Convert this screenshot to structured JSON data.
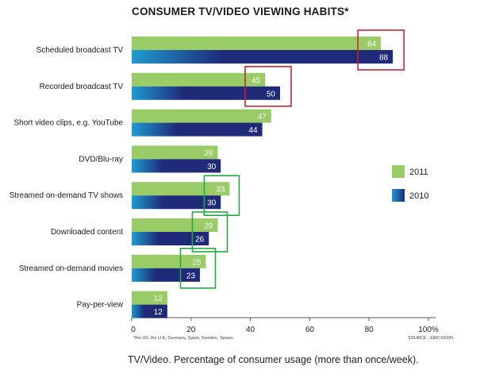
{
  "chart_data": {
    "type": "bar",
    "orientation": "horizontal",
    "title": "CONSUMER TV/VIDEO VIEWING HABITS*",
    "categories": [
      "Scheduled broadcast TV",
      "Recorded broadcast TV",
      "Short video clips, e.g. YouTube",
      "DVD/Blu-ray",
      "Streamed on-demand TV shows",
      "Downloaded content",
      "Streamed on-demand movies",
      "Pay-per-view"
    ],
    "series": [
      {
        "name": "2011",
        "values": [
          84,
          45,
          47,
          29,
          33,
          29,
          25,
          12
        ],
        "color": "#99cc66"
      },
      {
        "name": "2010",
        "values": [
          88,
          50,
          44,
          30,
          30,
          26,
          23,
          12
        ],
        "color": "#1f2a78",
        "gradient_start": "#1f9bd0"
      }
    ],
    "xlim": [
      0,
      100
    ],
    "x_ticks": [
      "0",
      "20",
      "40",
      "60",
      "80",
      "100%"
    ],
    "legend": [
      {
        "label": "2011",
        "color": "#99cc66"
      },
      {
        "label": "2010",
        "color": "#1f2a78"
      }
    ],
    "legend_position": "right",
    "highlights": [
      {
        "category": "Scheduled broadcast TV",
        "color": "#cc2233"
      },
      {
        "category": "Recorded broadcast TV",
        "color": "#cc2233"
      },
      {
        "category": "Streamed on-demand TV shows",
        "color": "#22aa44"
      },
      {
        "category": "Downloaded content",
        "color": "#22aa44"
      },
      {
        "category": "Streamed on-demand movies",
        "color": "#22aa44"
      }
    ],
    "footnote": "*the US, the U.K, Germany, Spain, Sweden, Taiwan",
    "source": "SOURCE : ERICSSON"
  },
  "caption": "TV/Video. Percentage of consumer usage (more than once/week)."
}
